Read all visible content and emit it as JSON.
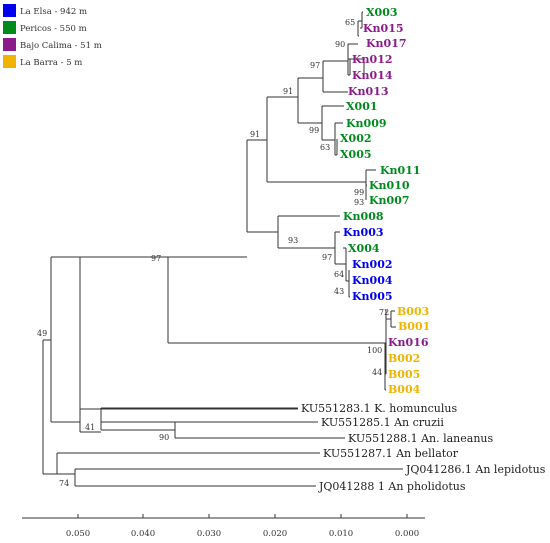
{
  "legend": [
    {
      "label": "La Elsa - 942 m",
      "color": "#0000ee"
    },
    {
      "label": "Pericos - 550 m",
      "color": "#008a1c"
    },
    {
      "label": "Bajo Calima - 51 m",
      "color": "#8b1a8b"
    },
    {
      "label": "La Barra - 5 m",
      "color": "#f0b400"
    }
  ],
  "taxa": {
    "X003": "X003",
    "Kn015": "Kn015",
    "Kn017": "Kn017",
    "Kn012": "Kn012",
    "Kn014": "Kn014",
    "Kn013": "Kn013",
    "X001": "X001",
    "Kn009": "Kn009",
    "X002": "X002",
    "X005": "X005",
    "Kn011": "Kn011",
    "Kn010": "Kn010",
    "Kn007": "Kn007",
    "Kn008": "Kn008",
    "Kn003": "Kn003",
    "X004": "X004",
    "Kn002": "Kn002",
    "Kn004": "Kn004",
    "Kn005": "Kn005",
    "B003": "B003",
    "B001": "B001",
    "Kn016": "Kn016",
    "B002": "B002",
    "B005": "B005",
    "B004": "B004",
    "KU551283": "KU551283.1 K. homunculus",
    "KU551285": "KU551285.1 An cruzii",
    "KU551288": "KU551288.1 An. laneanus",
    "KU551287": "KU551287.1 An bellator",
    "JQ041286": "JQ041286.1 An lepidotus",
    "JQ041288": "JQ041288 1 An pholidotus"
  },
  "bootstrap": {
    "b65": "65",
    "b90": "90",
    "b97a": "97",
    "b91a": "91",
    "b99a": "99",
    "b63": "63",
    "b91b": "91",
    "b99b": "99",
    "b93a": "93",
    "b93b": "93",
    "b97b": "97",
    "b64": "64",
    "b43": "43",
    "b97c": "97",
    "b72": "72",
    "b100": "100",
    "b44": "44",
    "b49": "49",
    "b41": "41",
    "b90b": "90",
    "b74": "74"
  },
  "scale": {
    "ticks": [
      "0.050",
      "0.040",
      "0.030",
      "0.020",
      "0.010",
      "0.000"
    ]
  }
}
